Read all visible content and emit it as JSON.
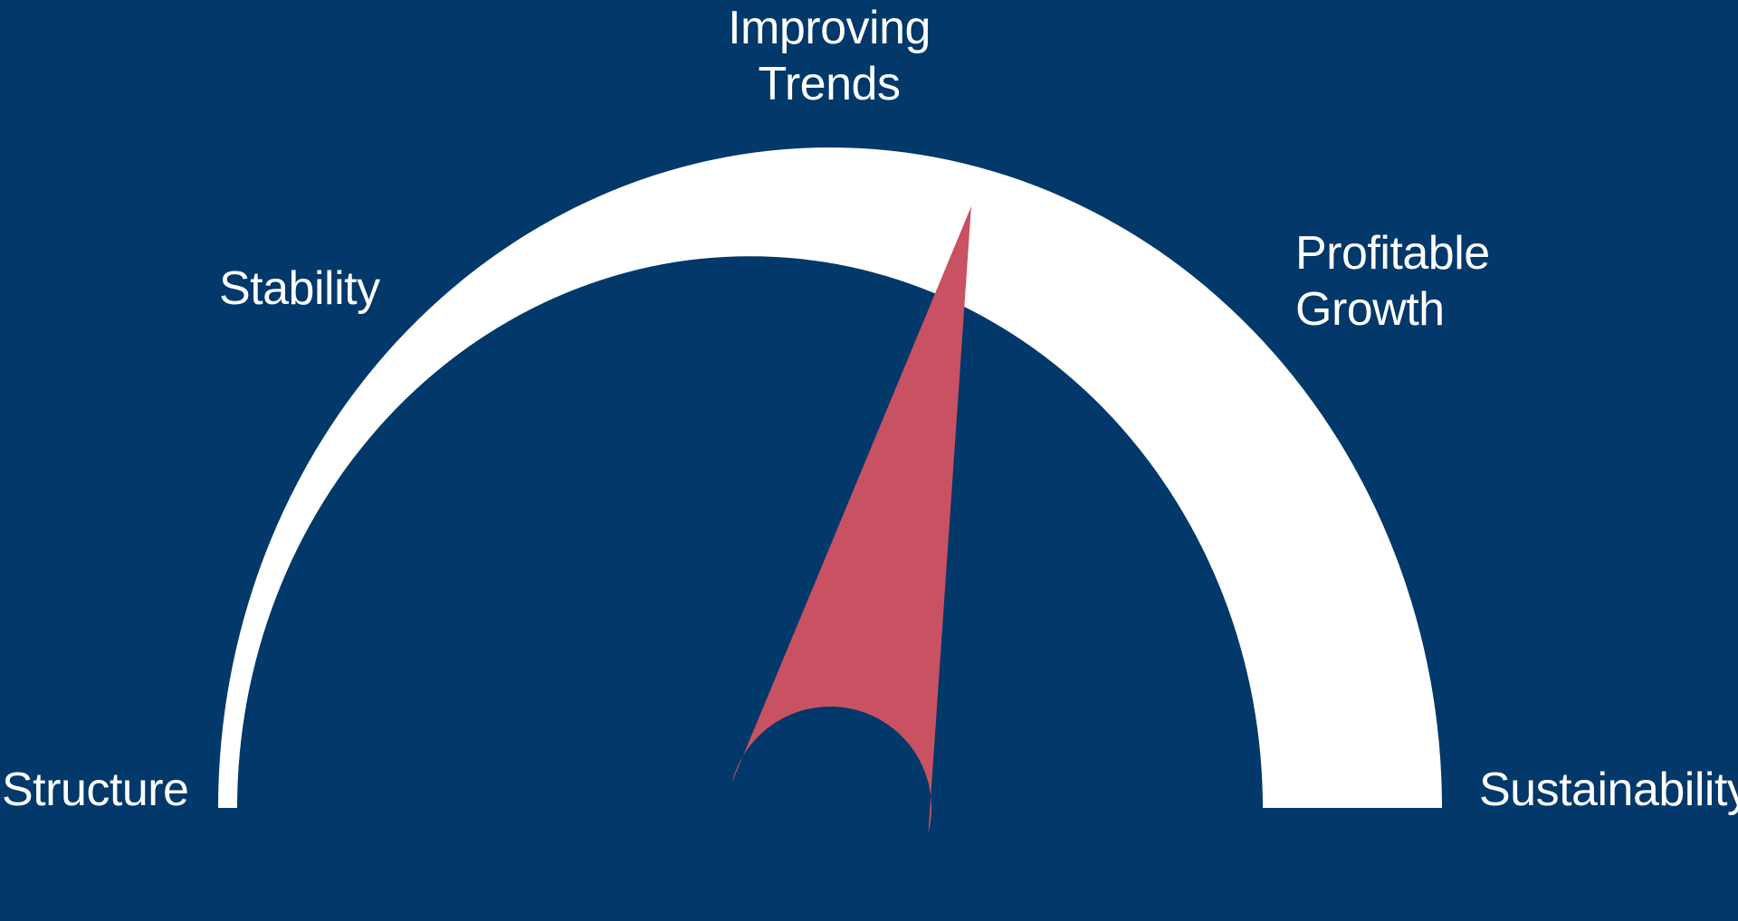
{
  "colors": {
    "background": "#02386a",
    "arc": "#ffffff",
    "needle": "#c85262",
    "label": "#ffffff"
  },
  "gauge": {
    "stages": [
      {
        "id": "structure",
        "lines": [
          "Structure"
        ]
      },
      {
        "id": "stability",
        "lines": [
          "Stability"
        ]
      },
      {
        "id": "improving-trends",
        "lines": [
          "Improving",
          "Trends"
        ]
      },
      {
        "id": "profitable-growth",
        "lines": [
          "Profitable",
          "Growth"
        ]
      },
      {
        "id": "sustainability",
        "lines": [
          "Sustainability"
        ]
      }
    ],
    "needle_level_fraction": 0.58
  }
}
